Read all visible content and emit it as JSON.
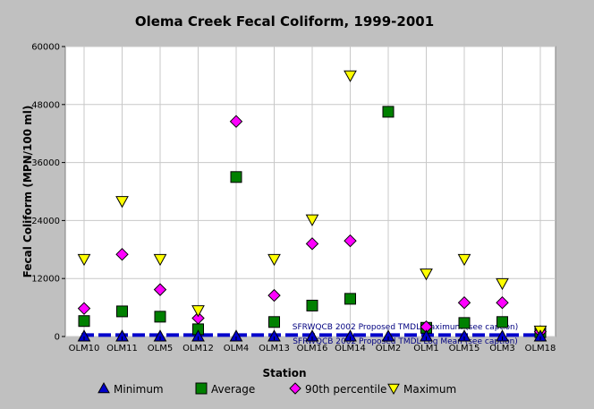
{
  "chart_data": {
    "type": "scatter",
    "title": "Olema Creek Fecal Coliform, 1999-2001",
    "xlabel": "Station",
    "ylabel": "Fecal Coliform (MPN/100 ml)",
    "ylim": [
      0,
      60000
    ],
    "yticks": [
      "0",
      "12000",
      "24000",
      "36000",
      "48000",
      "60000"
    ],
    "grid": true,
    "legend_position": "bottom",
    "categories": [
      "OLM10",
      "OLM11",
      "OLM5",
      "OLM12",
      "OLM4",
      "OLM13",
      "OLM16",
      "OLM14",
      "OLM2",
      "OLM1",
      "OLM15",
      "OLM3",
      "OLM18"
    ],
    "series": [
      {
        "name": "Minimum",
        "marker": "triangle-up",
        "color": "#0000cc",
        "values": [
          40,
          40,
          40,
          40,
          40,
          40,
          40,
          40,
          40,
          40,
          40,
          40,
          40
        ]
      },
      {
        "name": "Average",
        "marker": "square",
        "color": "#008000",
        "values": [
          3200,
          5200,
          4100,
          1500,
          33000,
          3000,
          6400,
          7800,
          46500,
          1800,
          2800,
          3000,
          900
        ]
      },
      {
        "name": "90th percentile",
        "marker": "diamond",
        "color": "#ff00ff",
        "values": [
          5800,
          17000,
          9700,
          3800,
          44500,
          8500,
          19200,
          19800,
          null,
          2000,
          7000,
          7000,
          1000
        ]
      },
      {
        "name": "Maximum",
        "marker": "triangle-down",
        "color": "#ffff00",
        "values": [
          16000,
          28000,
          16000,
          5400,
          null,
          16000,
          24200,
          54000,
          null,
          13000,
          16000,
          11000,
          1200
        ]
      }
    ],
    "reference_lines": [
      {
        "label": "SFRWQCB 2002 Proposed TMDL Maximum (see caption)",
        "value": 400,
        "color": "#0000cc"
      },
      {
        "label": "SFRWQCB 2002 Proposed TMDL Log Mean (see caption)",
        "value": 200,
        "color": "#0000cc"
      }
    ]
  }
}
